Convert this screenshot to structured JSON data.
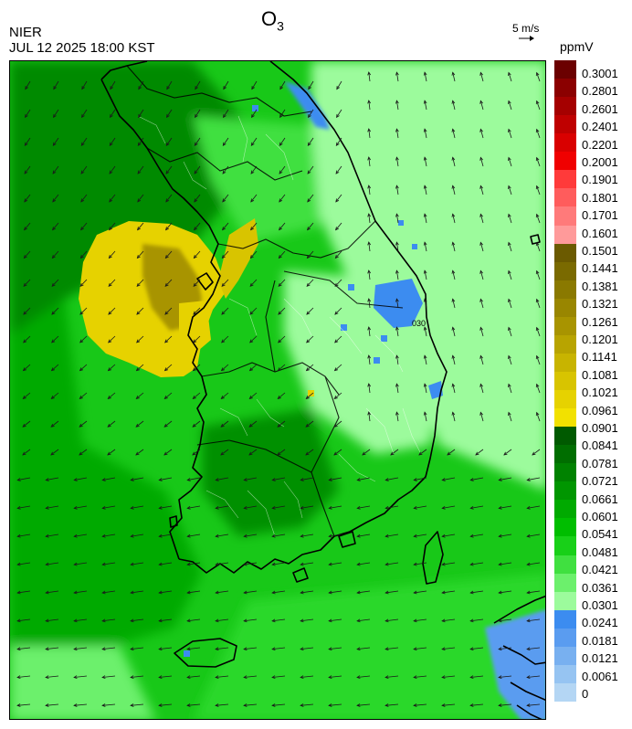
{
  "header": {
    "title": "O",
    "title_sub": "3",
    "agency": "NIER",
    "timestamp": "JUL 12 2025 18:00 KST",
    "wind_ref": "5 m/s",
    "unit": "ppmV"
  },
  "legend": {
    "labels": [
      "0.3001",
      "0.2801",
      "0.2601",
      "0.2401",
      "0.2201",
      "0.2001",
      "0.1901",
      "0.1801",
      "0.1701",
      "0.1601",
      "0.1501",
      "0.1441",
      "0.1381",
      "0.1321",
      "0.1261",
      "0.1201",
      "0.1141",
      "0.1081",
      "0.1021",
      "0.0961",
      "0.0901",
      "0.0841",
      "0.0781",
      "0.0721",
      "0.0661",
      "0.0601",
      "0.0541",
      "0.0481",
      "0.0421",
      "0.0361",
      "0.0301",
      "0.0241",
      "0.0181",
      "0.0121",
      "0.0061",
      "0"
    ],
    "colors": [
      "#6b0000",
      "#8b0000",
      "#a50000",
      "#bf0000",
      "#d90000",
      "#f00000",
      "#ff3a3a",
      "#ff5c5c",
      "#ff7a7a",
      "#ff9a9a",
      "#6b5a00",
      "#7a6a00",
      "#8a7900",
      "#998600",
      "#a89400",
      "#b8a400",
      "#c8b400",
      "#d8c400",
      "#e6d200",
      "#f2e100",
      "#005a00",
      "#006e00",
      "#008200",
      "#009600",
      "#00aa00",
      "#00be00",
      "#18d018",
      "#40e040",
      "#6cf06c",
      "#9cfb9c",
      "#3c8cf0",
      "#5a9cf0",
      "#78b0f0",
      "#96c4f2",
      "#b4d6f4"
    ]
  },
  "map": {
    "field_description": "ozone concentration field with wind vectors over the Korean peninsula",
    "ozone_hotspot_region": "west sea near Incheon",
    "wind_direction": "southwest (flowing from northeast)"
  }
}
